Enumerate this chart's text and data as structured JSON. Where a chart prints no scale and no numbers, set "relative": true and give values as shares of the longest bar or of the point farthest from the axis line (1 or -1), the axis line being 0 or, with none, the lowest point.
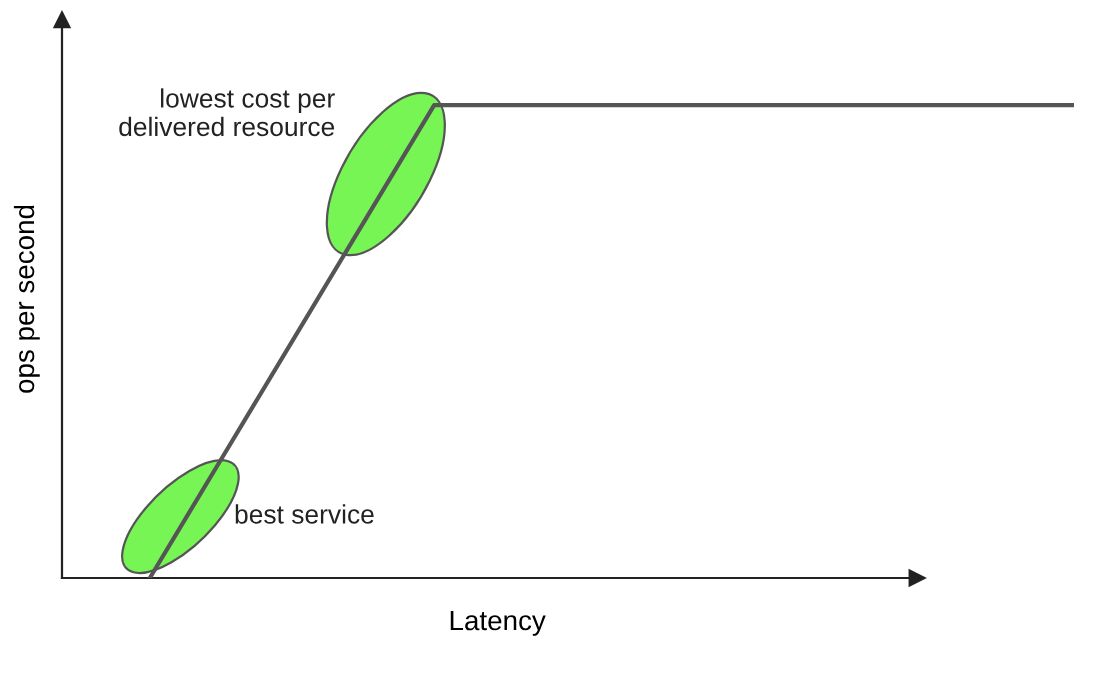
{
  "chart_data": {
    "type": "line",
    "relative": true,
    "xlabel": "Latency",
    "ylabel": "ops per second",
    "categories": [
      null,
      null,
      null,
      null,
      null,
      null,
      null,
      null,
      null,
      null,
      null,
      null,
      null,
      null
    ],
    "series": [
      {
        "color": "#555555",
        "values": [
          0,
          0.25,
          0.5,
          0.75,
          1,
          1,
          1,
          1,
          1,
          1,
          1,
          1,
          1,
          1
        ]
      }
    ],
    "annotations": [
      "best service",
      "lowest cost per\ndelivered resource"
    ],
    "marker": "none",
    "line_style": "solid"
  }
}
